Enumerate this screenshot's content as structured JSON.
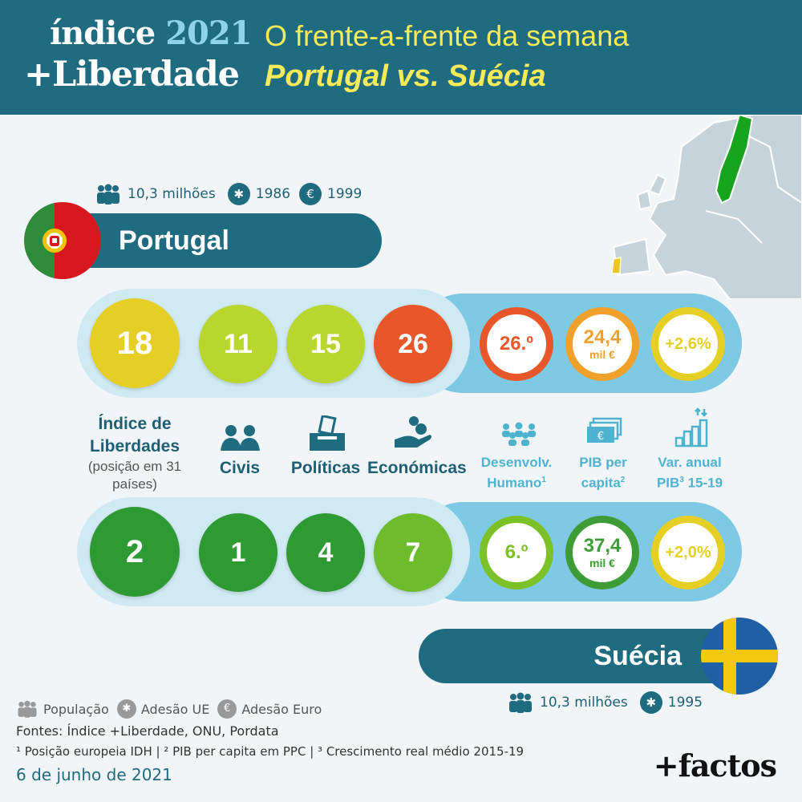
{
  "header": {
    "brand_line1": "índice",
    "brand_year": "2021",
    "brand_line2": "+Liberdade",
    "title": "O frente-a-frente da semana",
    "subtitle": "Portugal vs. Suécia"
  },
  "portugal": {
    "name": "Portugal",
    "population": "10,3 milhões",
    "eu_year": "1986",
    "euro_year": "1999",
    "indice": "18",
    "civis": "11",
    "politicas": "15",
    "economicas": "26",
    "idh": "26.º",
    "pib_value": "24,4",
    "pib_unit": "mil €",
    "var": "+2,6%",
    "colors": {
      "indice": "#e6cf24",
      "civis": "#b9d62e",
      "politicas": "#b9d62e",
      "economicas": "#e8572a",
      "idh_ring": "#e8572a",
      "pib_ring": "#f0a12c",
      "var_ring": "#e6cf24"
    }
  },
  "suecia": {
    "name": "Suécia",
    "population": "10,3 milhões",
    "eu_year": "1995",
    "indice": "2",
    "civis": "1",
    "politicas": "4",
    "economicas": "7",
    "idh": "6.º",
    "pib_value": "37,4",
    "pib_unit": "mil €",
    "var": "+2,0%",
    "colors": {
      "indice": "#2e9a33",
      "civis": "#2e9a33",
      "politicas": "#2e9a33",
      "economicas": "#6cbc2c",
      "idh_ring": "#7dc128",
      "pib_ring": "#3d9c35",
      "var_ring": "#e6cf24"
    }
  },
  "labels": {
    "indice_title": "Índice de Liberdades",
    "indice_note": "(posição em 31 países)",
    "civis": "Civis",
    "politicas": "Políticas",
    "economicas": "Económicas",
    "idh_l1": "Desenvolv.",
    "idh_l2": "Humano",
    "idh_sup": "1",
    "pib_l1": "PIB per",
    "pib_l2": "capita",
    "pib_sup": "2",
    "var_l1": "Var. anual",
    "var_l2a": "PIB",
    "var_sup": "3",
    "var_l2b": " 15-19"
  },
  "footer": {
    "legend_population": "População",
    "legend_eu": "Adesão UE",
    "legend_euro": "Adesão Euro",
    "sources": "Fontes: Índice +Liberdade, ONU, Pordata",
    "notes": "¹ Posição europeia IDH | ² PIB per capita em PPC | ³ Crescimento real médio 2015-19",
    "date": "6 de junho de 2021",
    "logo": "+factos"
  },
  "icons": [
    "people-icon",
    "eu-stars-icon",
    "euro-icon",
    "civis-icon",
    "ballot-box-icon",
    "coin-hand-icon",
    "crowd-icon",
    "banknote-icon",
    "bar-chart-icon"
  ]
}
